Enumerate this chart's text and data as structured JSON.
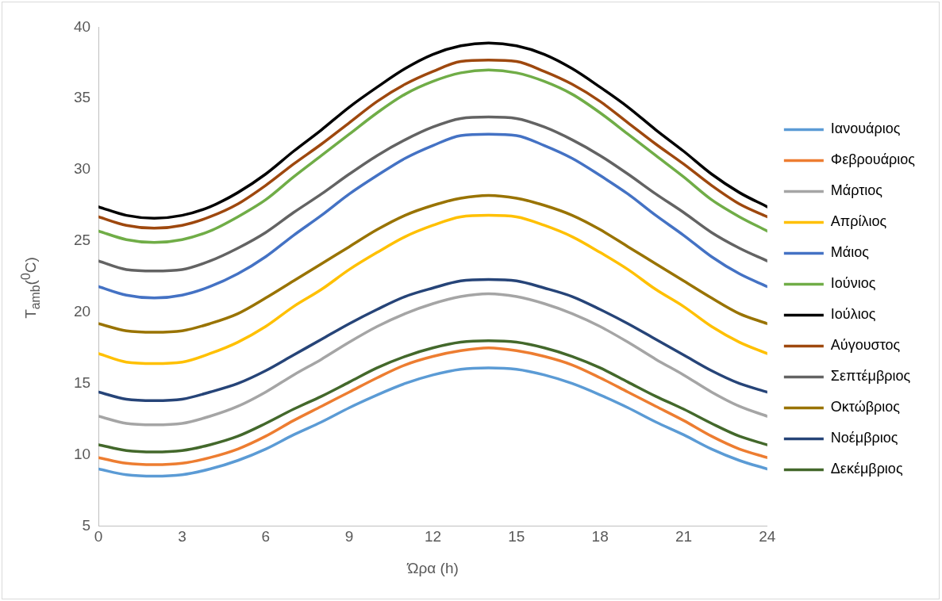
{
  "chart_data": {
    "type": "line",
    "xlabel": "Ώρα (h)",
    "ylabel": "T$_{amb}$($^{0}$C)",
    "x": [
      0,
      1,
      2,
      3,
      4,
      5,
      6,
      7,
      8,
      9,
      10,
      11,
      12,
      13,
      14,
      15,
      16,
      17,
      18,
      19,
      20,
      21,
      22,
      23,
      24
    ],
    "xlim": [
      0,
      24
    ],
    "xticks": [
      0,
      3,
      6,
      9,
      12,
      15,
      18,
      21,
      24
    ],
    "ylim": [
      5,
      40
    ],
    "yticks": [
      5,
      10,
      15,
      20,
      25,
      30,
      35,
      40
    ],
    "grid": false,
    "legend": "right",
    "marker": "none",
    "line_style": "solid",
    "series": [
      {
        "name": "Ιανουάριος",
        "color": "#5b9bd5",
        "values": [
          9.0,
          8.6,
          8.5,
          8.6,
          9.0,
          9.6,
          10.4,
          11.4,
          12.3,
          13.3,
          14.2,
          15.0,
          15.6,
          16.0,
          16.1,
          16.0,
          15.6,
          15.0,
          14.2,
          13.3,
          12.3,
          11.4,
          10.4,
          9.6,
          9.0
        ]
      },
      {
        "name": "Φεβρουάριος",
        "color": "#ed7d31",
        "values": [
          9.8,
          9.4,
          9.3,
          9.4,
          9.8,
          10.4,
          11.3,
          12.4,
          13.4,
          14.4,
          15.4,
          16.3,
          16.9,
          17.3,
          17.5,
          17.3,
          16.9,
          16.3,
          15.4,
          14.4,
          13.4,
          12.4,
          11.3,
          10.4,
          9.8
        ]
      },
      {
        "name": "Μάρτιος",
        "color": "#a5a5a5",
        "values": [
          12.7,
          12.2,
          12.1,
          12.2,
          12.7,
          13.4,
          14.4,
          15.6,
          16.7,
          17.9,
          19.0,
          19.9,
          20.6,
          21.1,
          21.3,
          21.1,
          20.6,
          19.9,
          19.0,
          17.9,
          16.7,
          15.6,
          14.4,
          13.4,
          12.7
        ]
      },
      {
        "name": "Απρίλιος",
        "color": "#ffc000",
        "values": [
          17.1,
          16.5,
          16.4,
          16.5,
          17.1,
          17.9,
          19.0,
          20.4,
          21.6,
          23.0,
          24.2,
          25.3,
          26.1,
          26.7,
          26.8,
          26.7,
          26.1,
          25.3,
          24.2,
          23.0,
          21.6,
          20.4,
          19.0,
          17.9,
          17.1
        ]
      },
      {
        "name": "Μάιος",
        "color": "#4472c4",
        "values": [
          21.8,
          21.2,
          21.0,
          21.2,
          21.8,
          22.7,
          23.9,
          25.4,
          26.8,
          28.3,
          29.6,
          30.8,
          31.7,
          32.4,
          32.5,
          32.4,
          31.7,
          30.8,
          29.6,
          28.3,
          26.8,
          25.4,
          23.9,
          22.7,
          21.8
        ]
      },
      {
        "name": "Ιούνιος",
        "color": "#70ad47",
        "values": [
          25.7,
          25.1,
          24.9,
          25.1,
          25.7,
          26.7,
          27.9,
          29.5,
          31.0,
          32.5,
          34.0,
          35.3,
          36.2,
          36.8,
          37.0,
          36.8,
          36.2,
          35.3,
          34.0,
          32.5,
          31.0,
          29.5,
          27.9,
          26.7,
          25.7
        ]
      },
      {
        "name": "Ιούλιος",
        "color": "#000000",
        "values": [
          27.4,
          26.8,
          26.6,
          26.8,
          27.4,
          28.4,
          29.7,
          31.3,
          32.8,
          34.4,
          35.8,
          37.1,
          38.1,
          38.7,
          38.9,
          38.7,
          38.1,
          37.1,
          35.8,
          34.4,
          32.8,
          31.3,
          29.7,
          28.4,
          27.4
        ]
      },
      {
        "name": "Αύγουστος",
        "color": "#9e480e",
        "values": [
          26.7,
          26.1,
          25.9,
          26.1,
          26.7,
          27.6,
          28.9,
          30.4,
          31.8,
          33.3,
          34.8,
          36.0,
          36.9,
          37.6,
          37.7,
          37.6,
          36.9,
          36.0,
          34.8,
          33.3,
          31.8,
          30.4,
          28.9,
          27.6,
          26.7
        ]
      },
      {
        "name": "Σεπτέμβριος",
        "color": "#636363",
        "values": [
          23.6,
          23.0,
          22.9,
          23.0,
          23.6,
          24.5,
          25.6,
          27.0,
          28.3,
          29.7,
          31.0,
          32.1,
          33.0,
          33.6,
          33.7,
          33.6,
          33.0,
          32.1,
          31.0,
          29.7,
          28.3,
          27.0,
          25.6,
          24.5,
          23.6
        ]
      },
      {
        "name": "Οκτώβριος",
        "color": "#997300",
        "values": [
          19.2,
          18.7,
          18.6,
          18.7,
          19.2,
          19.9,
          21.0,
          22.2,
          23.4,
          24.6,
          25.8,
          26.8,
          27.5,
          28.0,
          28.2,
          28.0,
          27.5,
          26.8,
          25.8,
          24.6,
          23.4,
          22.2,
          21.0,
          19.9,
          19.2
        ]
      },
      {
        "name": "Νοέμβριος",
        "color": "#264478",
        "values": [
          14.4,
          13.9,
          13.8,
          13.9,
          14.4,
          15.0,
          15.9,
          17.0,
          18.1,
          19.2,
          20.2,
          21.1,
          21.7,
          22.2,
          22.3,
          22.2,
          21.7,
          21.1,
          20.2,
          19.2,
          18.1,
          17.0,
          15.9,
          15.0,
          14.4
        ]
      },
      {
        "name": "Δεκέμβριος",
        "color": "#43682b",
        "values": [
          10.7,
          10.3,
          10.2,
          10.3,
          10.7,
          11.3,
          12.2,
          13.2,
          14.1,
          15.1,
          16.1,
          16.9,
          17.5,
          17.9,
          18.0,
          17.9,
          17.5,
          16.9,
          16.1,
          15.1,
          14.1,
          13.2,
          12.2,
          11.3,
          10.7
        ]
      }
    ]
  }
}
